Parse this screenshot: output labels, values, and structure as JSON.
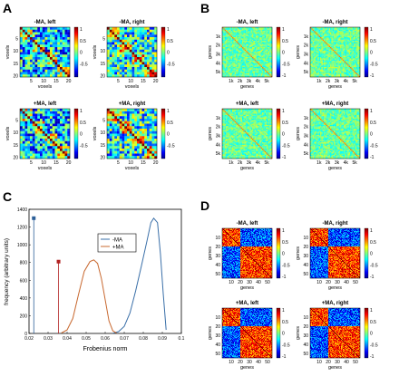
{
  "panels": {
    "A": {
      "letter": "A",
      "titles": [
        "-MA, left",
        "-MA, right",
        "+MA, left",
        "+MA, right"
      ],
      "xlabel": "voxels",
      "ylabel": "voxels",
      "ticks": [
        "5",
        "10",
        "15",
        "20"
      ],
      "colorbar_ticks": [
        "1",
        "0.5",
        "0",
        "-0.5"
      ],
      "matrix_size": 20,
      "blocks": [
        5,
        10,
        15,
        20
      ]
    },
    "B": {
      "letter": "B",
      "titles": [
        "-MA, left",
        "-MA, right",
        "+MA, left",
        "+MA, right"
      ],
      "xlabel": "genes",
      "ylabel": "genes",
      "ticks": [
        "1k",
        "2k",
        "3k",
        "4k",
        "5k"
      ],
      "colorbar_ticks": [
        "1",
        "0.5",
        "0",
        "-0.5",
        "-1"
      ]
    },
    "C": {
      "letter": "C"
    },
    "D": {
      "letter": "D",
      "titles": [
        "-MA, left",
        "-MA, right",
        "+MA, left",
        "+MA, right"
      ],
      "xlabel": "genes",
      "ylabel": "genes",
      "xticks": [
        "10",
        "20",
        "30",
        "40",
        "50"
      ],
      "yticks": [
        "10",
        "20",
        "30",
        "40",
        "50"
      ],
      "colorbar_ticks": [
        "1",
        "0.5",
        "0",
        "-0.5",
        "-1"
      ],
      "split": 20,
      "size": 55
    }
  },
  "chart_data": {
    "type": "line",
    "xlabel": "Frobenius norm",
    "ylabel": "frequency (arbitrary units)",
    "xlim": [
      0.02,
      0.1
    ],
    "ylim": [
      0,
      1400
    ],
    "xticks": [
      "0.02",
      "0.03",
      "0.04",
      "0.05",
      "0.06",
      "0.07",
      "0.08",
      "0.09",
      "0.1"
    ],
    "yticks": [
      "0",
      "200",
      "400",
      "600",
      "800",
      "1000",
      "1200",
      "1400"
    ],
    "legend_position": "top-center",
    "series": [
      {
        "name": "-MA",
        "color": "#3a6fa8",
        "values": [
          [
            0.064,
            2
          ],
          [
            0.067,
            20
          ],
          [
            0.07,
            80
          ],
          [
            0.073,
            230
          ],
          [
            0.076,
            480
          ],
          [
            0.079,
            760
          ],
          [
            0.082,
            1050
          ],
          [
            0.084,
            1250
          ],
          [
            0.0855,
            1300
          ],
          [
            0.0875,
            1250
          ],
          [
            0.089,
            900
          ],
          [
            0.0905,
            450
          ],
          [
            0.092,
            40
          ]
        ],
        "marker": [
          0.0225,
          1300
        ],
        "marker_color": "#2c5f98"
      },
      {
        "name": "+MA",
        "color": "#c8682f",
        "values": [
          [
            0.037,
            5
          ],
          [
            0.04,
            40
          ],
          [
            0.043,
            170
          ],
          [
            0.046,
            440
          ],
          [
            0.049,
            700
          ],
          [
            0.052,
            810
          ],
          [
            0.054,
            830
          ],
          [
            0.056,
            790
          ],
          [
            0.058,
            620
          ],
          [
            0.06,
            380
          ],
          [
            0.062,
            140
          ],
          [
            0.064,
            30
          ],
          [
            0.066,
            5
          ]
        ],
        "marker": [
          0.0355,
          810
        ],
        "marker_color": "#b22222"
      }
    ]
  }
}
